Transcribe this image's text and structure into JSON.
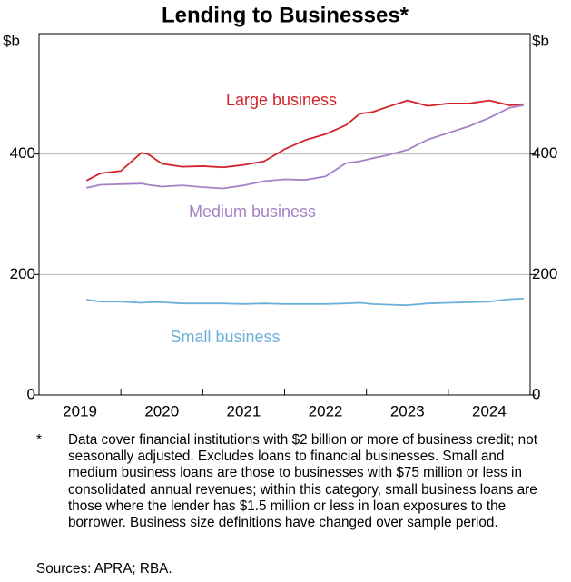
{
  "chart_data": {
    "type": "line",
    "title": "Lending to Businesses*",
    "ylabel": "$b",
    "x": [
      2019.58,
      2019.75,
      2020.0,
      2020.25,
      2020.33,
      2020.5,
      2020.75,
      2021.0,
      2021.25,
      2021.5,
      2021.75,
      2022.0,
      2022.25,
      2022.5,
      2022.75,
      2022.92,
      2023.08,
      2023.25,
      2023.5,
      2023.75,
      2024.0,
      2024.25,
      2024.5,
      2024.75,
      2024.92
    ],
    "series": [
      {
        "name": "Large business",
        "color": "#d2232a",
        "values": [
          356,
          368,
          372,
          402,
          400,
          384,
          379,
          380,
          378,
          382,
          388,
          408,
          423,
          433,
          448,
          467,
          470,
          478,
          489,
          480,
          484,
          484,
          489,
          481,
          483
        ]
      },
      {
        "name": "Medium business",
        "color": "#a680c6",
        "values": [
          344,
          349,
          350,
          351,
          349,
          346,
          348,
          345,
          343,
          348,
          355,
          358,
          357,
          363,
          385,
          388,
          393,
          398,
          407,
          424,
          435,
          446,
          460,
          477,
          481
        ]
      },
      {
        "name": "Small business",
        "color": "#6cb0d8",
        "values": [
          158,
          155,
          155,
          153,
          154,
          154,
          152,
          152,
          152,
          151,
          152,
          151,
          151,
          151,
          152,
          153,
          151,
          150,
          149,
          152,
          153,
          154,
          155,
          159,
          160
        ]
      }
    ],
    "xlim": [
      2019,
      2025
    ],
    "xticks": [
      {
        "value": 2019.5,
        "label": "2019"
      },
      {
        "value": 2020.5,
        "label": "2020"
      },
      {
        "value": 2021.5,
        "label": "2021"
      },
      {
        "value": 2022.5,
        "label": "2022"
      },
      {
        "value": 2023.5,
        "label": "2023"
      },
      {
        "value": 2024.5,
        "label": "2024"
      }
    ],
    "xminorticks": [
      2020,
      2021,
      2022,
      2023,
      2024
    ],
    "ylim": [
      0,
      600
    ],
    "yticks": [
      0,
      200,
      400
    ],
    "grid": true,
    "footnote_marker": "*",
    "footnote": "Data cover financial institutions with $2 billion or more of business credit; not seasonally adjusted. Excludes loans to financial businesses. Small and medium business loans are those to businesses with $75 million or less in consolidated annual revenues; within this category, small business loans are those where the lender has $1.5 million or less in loan exposures to the borrower. Business size definitions have changed over sample period.",
    "sources": "Sources: APRA; RBA."
  }
}
